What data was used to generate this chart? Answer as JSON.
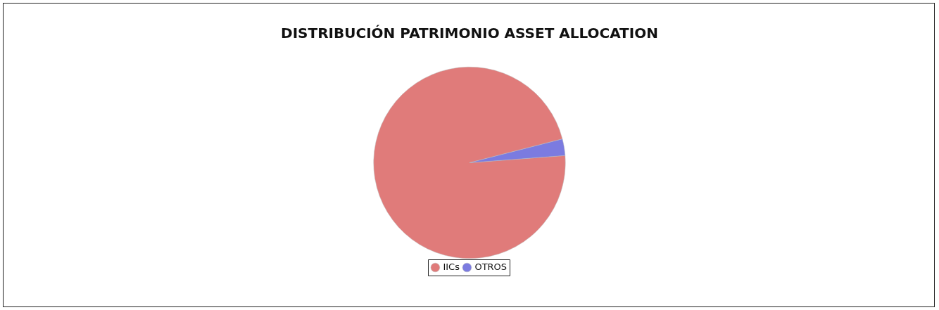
{
  "chart_data": {
    "type": "pie",
    "title": "DISTRIBUCIÓN PATRIMONIO ASSET ALLOCATION",
    "categories": [
      "IICs",
      "OTROS"
    ],
    "values": [
      97.2,
      2.8
    ],
    "colors": [
      "#e07b7a",
      "#7b7be0"
    ],
    "legend": "bottom"
  }
}
